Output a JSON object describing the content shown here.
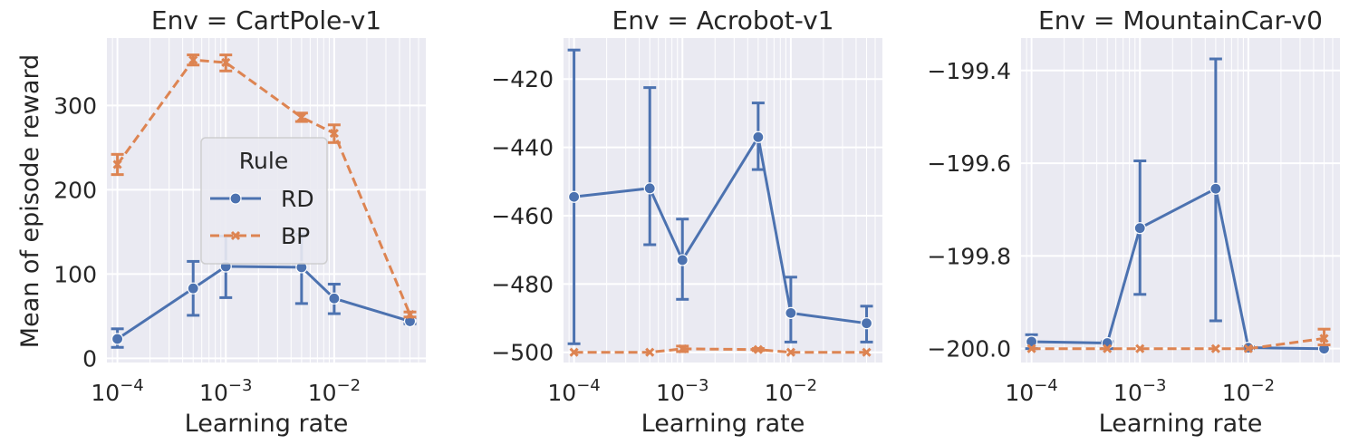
{
  "figure": {
    "ylabel": "Mean of episode reward"
  },
  "legend": {
    "title": "Rule",
    "entries": [
      {
        "name": "RD",
        "color": "#4c72b0",
        "marker": "circle",
        "dash": "solid"
      },
      {
        "name": "BP",
        "color": "#dd8452",
        "marker": "x",
        "dash": "dashed"
      }
    ]
  },
  "chart_data": [
    {
      "type": "line",
      "title": "Env = CartPole-v1",
      "xlabel": "Learning rate",
      "xscale": "log",
      "xlim": [
        8e-05,
        0.07
      ],
      "xticks": [
        {
          "value": 0.0001,
          "exp": "−4"
        },
        {
          "value": 0.001,
          "exp": "−3"
        },
        {
          "value": 0.01,
          "exp": "−2"
        }
      ],
      "ylim": [
        -5,
        380
      ],
      "yticks": [
        {
          "value": 0,
          "label": "0"
        },
        {
          "value": 100,
          "label": "100"
        },
        {
          "value": 200,
          "label": "200"
        },
        {
          "value": 300,
          "label": "300"
        }
      ],
      "legend": "center",
      "series": [
        {
          "name": "RD",
          "x": [
            0.0001,
            0.0005,
            0.001,
            0.005,
            0.01,
            0.05
          ],
          "y": [
            23,
            83,
            109,
            108,
            71,
            44
          ],
          "err_low": [
            13,
            51,
            72,
            65,
            53,
            41
          ],
          "err_high": [
            35,
            115,
            145,
            147,
            88,
            48
          ]
        },
        {
          "name": "BP",
          "x": [
            0.0001,
            0.0005,
            0.001,
            0.005,
            0.01,
            0.05
          ],
          "y": [
            230,
            354,
            351,
            286,
            267,
            52
          ],
          "err_low": [
            218,
            348,
            341,
            281,
            256,
            49
          ],
          "err_high": [
            242,
            360,
            360,
            291,
            277,
            55
          ]
        }
      ]
    },
    {
      "type": "line",
      "title": "Env = Acrobot-v1",
      "xlabel": "Learning rate",
      "xscale": "log",
      "xlim": [
        8e-05,
        0.07
      ],
      "xticks": [
        {
          "value": 0.0001,
          "exp": "−4"
        },
        {
          "value": 0.001,
          "exp": "−3"
        },
        {
          "value": 0.01,
          "exp": "−2"
        }
      ],
      "ylim": [
        -503,
        -408
      ],
      "yticks": [
        {
          "value": -500,
          "label": "−500"
        },
        {
          "value": -480,
          "label": "−480"
        },
        {
          "value": -460,
          "label": "−460"
        },
        {
          "value": -440,
          "label": "−440"
        },
        {
          "value": -420,
          "label": "−420"
        }
      ],
      "legend": "none",
      "series": [
        {
          "name": "RD",
          "x": [
            0.0001,
            0.0005,
            0.001,
            0.005,
            0.01,
            0.05
          ],
          "y": [
            -454.5,
            -452,
            -473,
            -437,
            -488.5,
            -491.5
          ],
          "err_low": [
            -497.5,
            -468.5,
            -484.5,
            -446.5,
            -497,
            -497
          ],
          "err_high": [
            -411.5,
            -422.5,
            -461,
            -427,
            -478,
            -486.5
          ]
        },
        {
          "name": "BP",
          "x": [
            0.0001,
            0.0005,
            0.001,
            0.005,
            0.01,
            0.05
          ],
          "y": [
            -500,
            -500,
            -499,
            -499.2,
            -500,
            -500
          ],
          "err_low": [
            -500,
            -500,
            -499.8,
            -499.5,
            -500,
            -500
          ],
          "err_high": [
            -500,
            -500,
            -498.2,
            -498.9,
            -500,
            -500
          ]
        }
      ]
    },
    {
      "type": "line",
      "title": "Env = MountainCar-v0",
      "xlabel": "Learning rate",
      "xscale": "log",
      "xlim": [
        8e-05,
        0.07
      ],
      "xticks": [
        {
          "value": 0.0001,
          "exp": "−4"
        },
        {
          "value": 0.001,
          "exp": "−3"
        },
        {
          "value": 0.01,
          "exp": "−2"
        }
      ],
      "ylim": [
        -200.03,
        -199.33
      ],
      "yticks": [
        {
          "value": -200.0,
          "label": "−200.0"
        },
        {
          "value": -199.8,
          "label": "−199.8"
        },
        {
          "value": -199.6,
          "label": "−199.6"
        },
        {
          "value": -199.4,
          "label": "−199.4"
        }
      ],
      "legend": "none",
      "series": [
        {
          "name": "RD",
          "x": [
            0.0001,
            0.0005,
            0.001,
            0.005,
            0.01,
            0.05
          ],
          "y": [
            -199.985,
            -199.988,
            -199.74,
            -199.655,
            -199.998,
            -200.0
          ],
          "err_low": [
            -200.0,
            -200.0,
            -199.883,
            -199.94,
            -200.0,
            -200.0
          ],
          "err_high": [
            -199.97,
            -199.985,
            -199.595,
            -199.375,
            -199.996,
            -200.0
          ]
        },
        {
          "name": "BP",
          "x": [
            0.0001,
            0.0005,
            0.001,
            0.005,
            0.01,
            0.05
          ],
          "y": [
            -200.0,
            -200.0,
            -200.0,
            -200.0,
            -200.0,
            -199.978
          ],
          "err_low": [
            -200.0,
            -200.0,
            -200.0,
            -200.0,
            -200.0,
            -199.992
          ],
          "err_high": [
            -200.0,
            -200.0,
            -200.0,
            -200.0,
            -200.0,
            -199.958
          ]
        }
      ]
    }
  ]
}
